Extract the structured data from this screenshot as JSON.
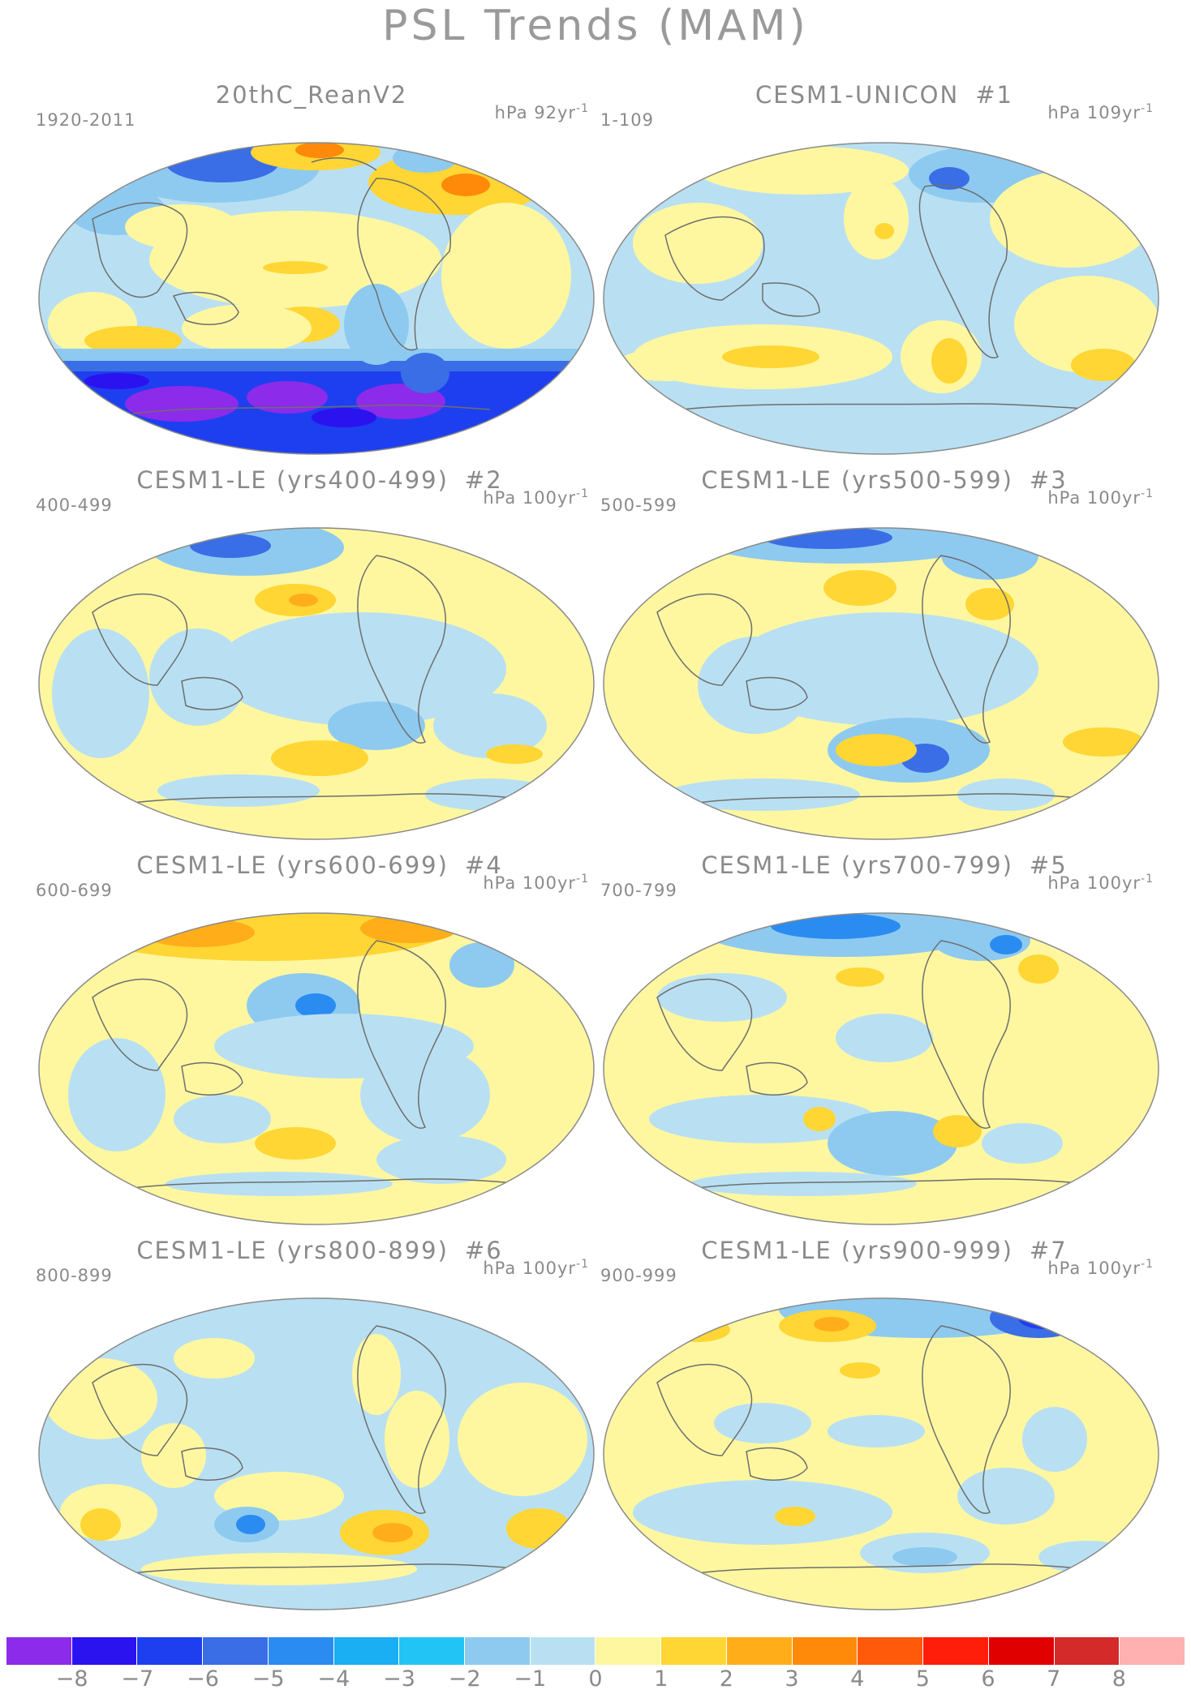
{
  "figure": {
    "title": "PSL Trends (MAM)"
  },
  "panels": [
    {
      "title": "20thC_ReanV2",
      "number": "",
      "period": "1920-2011",
      "units": "hPa 92yr",
      "units_exp": "-1"
    },
    {
      "title": "CESM1-UNICON",
      "number": "#1",
      "period": "1-109",
      "units": "hPa 109yr",
      "units_exp": "-1"
    },
    {
      "title": "CESM1-LE (yrs400-499)",
      "number": "#2",
      "period": "400-499",
      "units": "hPa 100yr",
      "units_exp": "-1"
    },
    {
      "title": "CESM1-LE (yrs500-599)",
      "number": "#3",
      "period": "500-599",
      "units": "hPa 100yr",
      "units_exp": "-1"
    },
    {
      "title": "CESM1-LE (yrs600-699)",
      "number": "#4",
      "period": "600-699",
      "units": "hPa 100yr",
      "units_exp": "-1"
    },
    {
      "title": "CESM1-LE (yrs700-799)",
      "number": "#5",
      "period": "700-799",
      "units": "hPa 100yr",
      "units_exp": "-1"
    },
    {
      "title": "CESM1-LE (yrs800-899)",
      "number": "#6",
      "period": "800-899",
      "units": "hPa 100yr",
      "units_exp": "-1"
    },
    {
      "title": "CESM1-LE (yrs900-999)",
      "number": "#7",
      "period": "900-999",
      "units": "hPa 100yr",
      "units_exp": "-1"
    }
  ],
  "colorbar": {
    "labels": [
      "-8",
      "-7",
      "-6",
      "-5",
      "-4",
      "-3",
      "-2",
      "-1",
      "0",
      "1",
      "2",
      "3",
      "4",
      "5",
      "6",
      "7",
      "8"
    ],
    "colors": [
      "#8c2bea",
      "#2b13f0",
      "#1e3ff0",
      "#3a6ee6",
      "#2a8cf0",
      "#1aaef2",
      "#22c4f6",
      "#8ecaf0",
      "#b9e0f2",
      "#fff7a0",
      "#ffd633",
      "#ffae1a",
      "#ff8a0a",
      "#ff5a0a",
      "#ff1e0a",
      "#e00000",
      "#d42a2a",
      "#ffb0b0"
    ]
  },
  "map_colors": {
    "ocean_neutral": "#b9e0f2",
    "land_neutral": "#fff7a0",
    "coast": "#6e6e6e",
    "ellipse_outline": "#8a8a8a"
  }
}
